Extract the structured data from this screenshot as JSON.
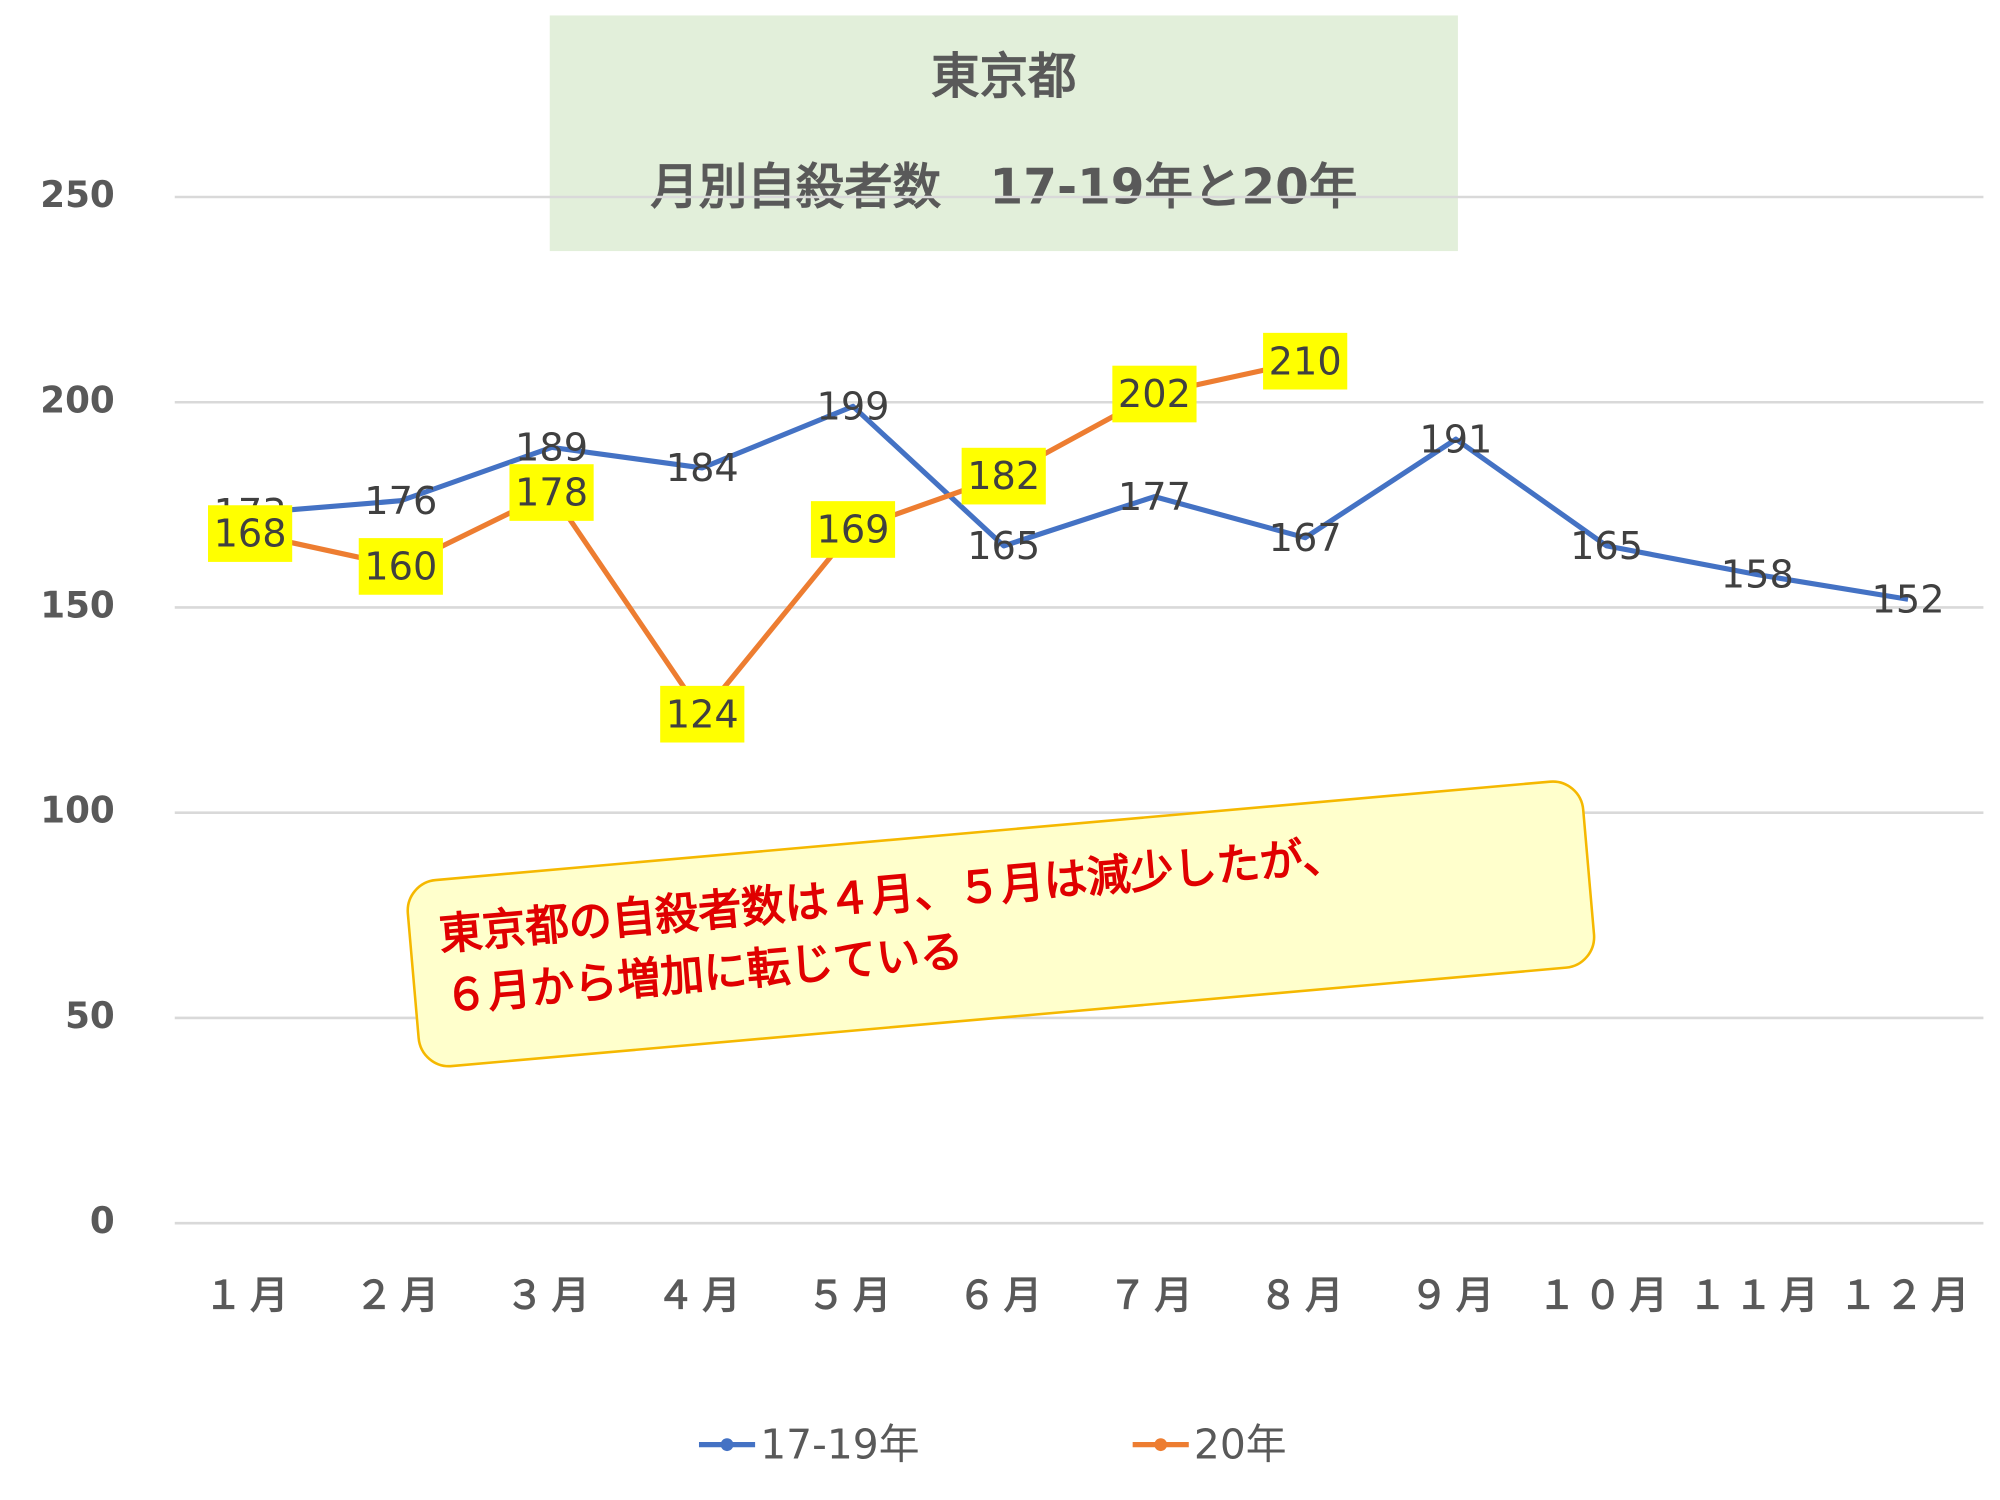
{
  "chart_data": {
    "type": "line",
    "title": "東京都",
    "subtitle": "月別自殺者数　17-19年と20年",
    "annotation": [
      "東京都の自殺者数は４月、５月は減少したが、",
      "６月から増加に転じている"
    ],
    "categories": [
      "１月",
      "２月",
      "３月",
      "４月",
      "５月",
      "６月",
      "７月",
      "８月",
      "９月",
      "１０月",
      "１１月",
      "１２月"
    ],
    "series": [
      {
        "name": "17-19年",
        "color": "#4472c4",
        "values": [
          173,
          176,
          189,
          184,
          199,
          165,
          177,
          167,
          191,
          165,
          158,
          152
        ]
      },
      {
        "name": "20年",
        "color": "#ed7d31",
        "values": [
          168,
          160,
          178,
          124,
          169,
          182,
          202,
          210,
          null,
          null,
          null,
          null
        ]
      }
    ],
    "ylim": [
      0,
      250
    ],
    "yticks": [
      0,
      50,
      100,
      150,
      200,
      250
    ],
    "grid": true,
    "legend": "bottom"
  }
}
